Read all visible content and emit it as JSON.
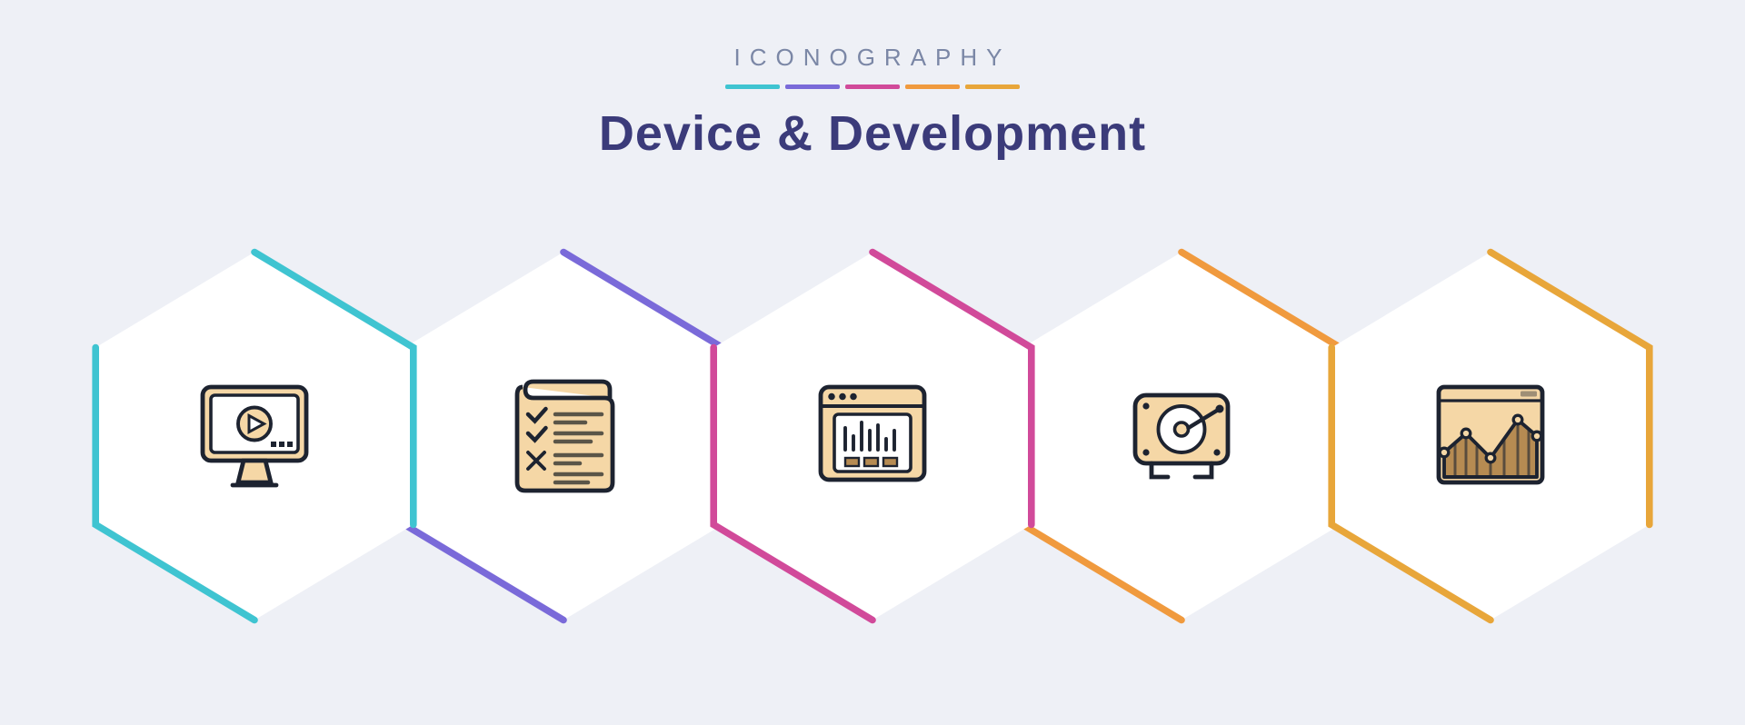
{
  "header": {
    "subtitle": "ICONOGRAPHY",
    "title": "Device & Development"
  },
  "palette": {
    "background": "#eef0f6",
    "heading": "#3b3b7a",
    "subtitle": "#7b87a6",
    "accent_bars": [
      "#3fc4d1",
      "#7a6ad9",
      "#d14a9a",
      "#f09a3e",
      "#e8a63a"
    ],
    "icon_fill": "#f5d7a6",
    "icon_stroke": "#1d2330",
    "hex_fill": "#ffffff"
  },
  "hex_row": {
    "type": "infographic",
    "item_count": 5,
    "hex_width": 380,
    "hex_height": 420,
    "hex_spacing": 340,
    "hex_bg": "#ffffff",
    "outline_segments": [
      {
        "side": "bottom-left",
        "stroke_width": 5
      },
      {
        "side": "top-right",
        "stroke_width": 5
      }
    ],
    "items": [
      {
        "accent": "#3fc4d1",
        "icon": "monitor-video",
        "label": "video monitor"
      },
      {
        "accent": "#7a6ad9",
        "icon": "checklist",
        "label": "task checklist"
      },
      {
        "accent": "#d14a9a",
        "icon": "browser-chart",
        "label": "web analytics"
      },
      {
        "accent": "#f09a3e",
        "icon": "hard-disk",
        "label": "hard disk drive"
      },
      {
        "accent": "#e8a63a",
        "icon": "area-chart",
        "label": "growth chart"
      }
    ]
  },
  "icons": {
    "monitor-video": {
      "fill": "#f5d7a6",
      "stroke": "#1d2330",
      "accent": "#b68b52"
    },
    "checklist": {
      "fill": "#f5d7a6",
      "stroke": "#1d2330",
      "line": "#5a5548"
    },
    "browser-chart": {
      "fill": "#f5d7a6",
      "stroke": "#1d2330",
      "bar": "#b68b52"
    },
    "hard-disk": {
      "fill": "#f5d7a6",
      "stroke": "#1d2330"
    },
    "area-chart": {
      "fill": "#b68b52",
      "stroke": "#1d2330",
      "bg": "#f5d7a6",
      "dot": "#f5d7a6"
    }
  }
}
